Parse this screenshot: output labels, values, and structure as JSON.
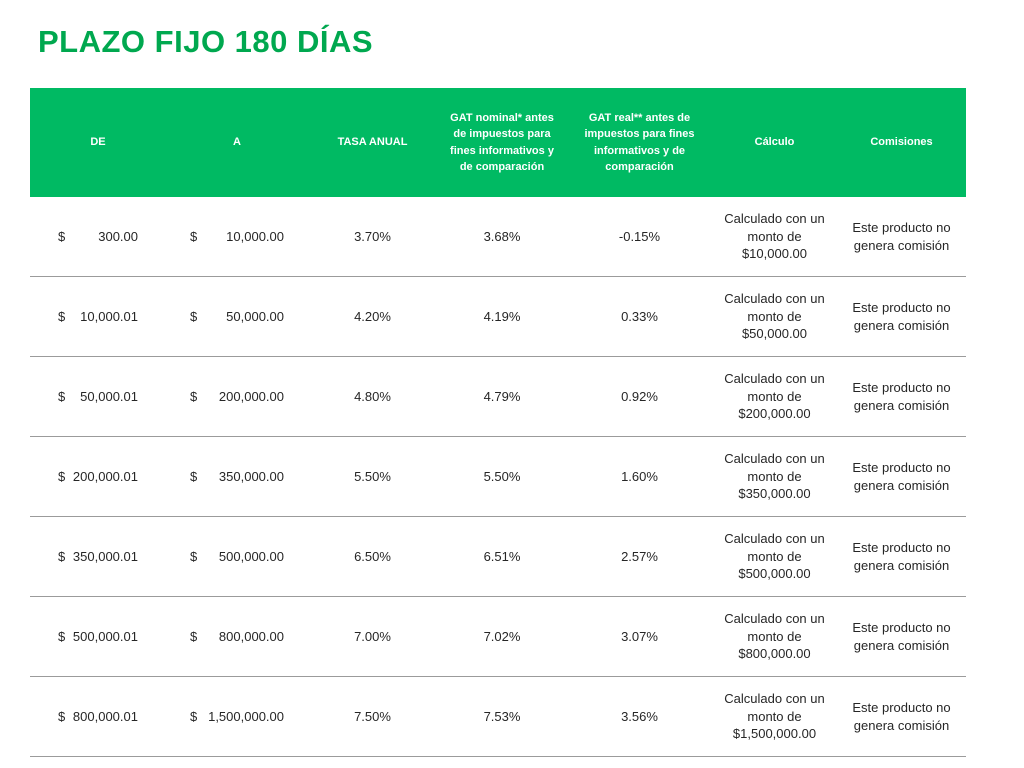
{
  "page": {
    "title": "PLAZO FIJO 180 DÍAS"
  },
  "colors": {
    "title_green": "#00A84F",
    "header_green": "#00BA63",
    "header_text": "#FFFFFF",
    "body_text": "#262626",
    "row_divider": "#9B9B9B"
  },
  "table": {
    "headers": [
      "DE",
      "A",
      "TASA ANUAL",
      "GAT nominal* antes de impuestos para fines informativos y de comparación",
      "GAT real** antes de impuestos para fines informativos y de comparación",
      "Cálculo",
      "Comisiones"
    ],
    "rows": [
      {
        "de": {
          "symbol": "$",
          "amount": "300.00"
        },
        "a": {
          "symbol": "$",
          "amount": "10,000.00"
        },
        "tasa_anual": "3.70%",
        "gat_nominal": "3.68%",
        "gat_real": "-0.15%",
        "calculo": "Calculado con un monto de $10,000.00",
        "comisiones": "Este producto no genera comisión"
      },
      {
        "de": {
          "symbol": "$",
          "amount": "10,000.01"
        },
        "a": {
          "symbol": "$",
          "amount": "50,000.00"
        },
        "tasa_anual": "4.20%",
        "gat_nominal": "4.19%",
        "gat_real": "0.33%",
        "calculo": "Calculado con un monto de $50,000.00",
        "comisiones": "Este producto no genera comisión"
      },
      {
        "de": {
          "symbol": "$",
          "amount": "50,000.01"
        },
        "a": {
          "symbol": "$",
          "amount": "200,000.00"
        },
        "tasa_anual": "4.80%",
        "gat_nominal": "4.79%",
        "gat_real": "0.92%",
        "calculo": "Calculado con un monto de $200,000.00",
        "comisiones": "Este producto no genera comisión"
      },
      {
        "de": {
          "symbol": "$",
          "amount": "200,000.01"
        },
        "a": {
          "symbol": "$",
          "amount": "350,000.00"
        },
        "tasa_anual": "5.50%",
        "gat_nominal": "5.50%",
        "gat_real": "1.60%",
        "calculo": "Calculado con un monto de $350,000.00",
        "comisiones": "Este producto no genera comisión"
      },
      {
        "de": {
          "symbol": "$",
          "amount": "350,000.01"
        },
        "a": {
          "symbol": "$",
          "amount": "500,000.00"
        },
        "tasa_anual": "6.50%",
        "gat_nominal": "6.51%",
        "gat_real": "2.57%",
        "calculo": "Calculado con un monto de $500,000.00",
        "comisiones": "Este producto no genera comisión"
      },
      {
        "de": {
          "symbol": "$",
          "amount": "500,000.01"
        },
        "a": {
          "symbol": "$",
          "amount": "800,000.00"
        },
        "tasa_anual": "7.00%",
        "gat_nominal": "7.02%",
        "gat_real": "3.07%",
        "calculo": "Calculado con un monto de $800,000.00",
        "comisiones": "Este producto no genera comisión"
      },
      {
        "de": {
          "symbol": "$",
          "amount": "800,000.01"
        },
        "a": {
          "symbol": "$",
          "amount": "1,500,000.00"
        },
        "tasa_anual": "7.50%",
        "gat_nominal": "7.53%",
        "gat_real": "3.56%",
        "calculo": "Calculado con un monto de $1,500,000.00",
        "comisiones": "Este producto no genera comisión"
      }
    ]
  }
}
